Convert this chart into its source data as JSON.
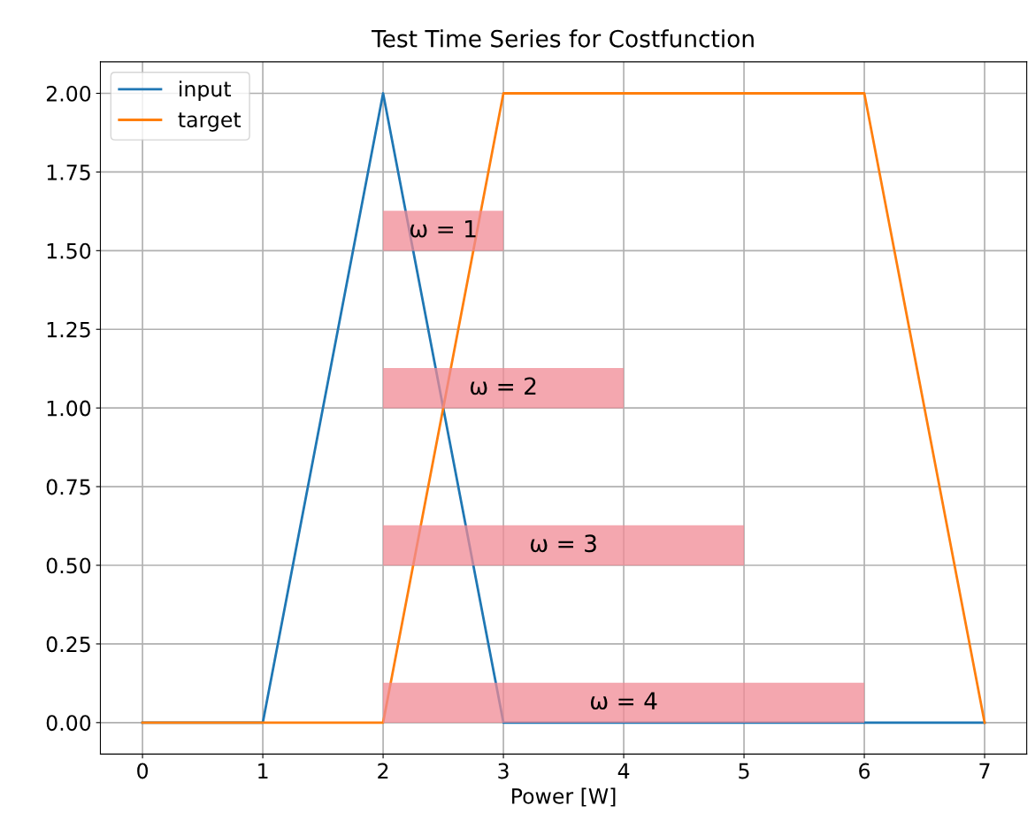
{
  "chart_data": {
    "type": "line",
    "title": "Test Time Series for Costfunction",
    "xlabel": "Power [W]",
    "x": [
      0,
      1,
      2,
      3,
      4,
      5,
      6,
      7
    ],
    "series": [
      {
        "name": "input",
        "color": "#1f77b4",
        "values": [
          0,
          0,
          2,
          0,
          0,
          0,
          0,
          0
        ]
      },
      {
        "name": "target",
        "color": "#ff7f0e",
        "values": [
          0,
          0,
          0,
          2,
          2,
          2,
          2,
          0
        ]
      }
    ],
    "xlim": [
      -0.35,
      7.35
    ],
    "ylim": [
      -0.1,
      2.1
    ],
    "xticks": [
      0,
      1,
      2,
      3,
      4,
      5,
      6,
      7
    ],
    "yticks": [
      {
        "value": 0,
        "label": "0.00"
      },
      {
        "value": 0.25,
        "label": "0.25"
      },
      {
        "value": 0.5,
        "label": "0.50"
      },
      {
        "value": 0.75,
        "label": "0.75"
      },
      {
        "value": 1,
        "label": "1.00"
      },
      {
        "value": 1.25,
        "label": "1.25"
      },
      {
        "value": 1.5,
        "label": "1.50"
      },
      {
        "value": 1.75,
        "label": "1.75"
      },
      {
        "value": 2,
        "label": "2.00"
      }
    ],
    "bands": [
      {
        "axis": "x",
        "from": 2,
        "to": 3,
        "label": "ω = 1",
        "color": "#f08a94"
      },
      {
        "axis": "x",
        "from": 2,
        "to": 4,
        "label": "ω = 2",
        "color": "#f08a94"
      },
      {
        "axis": "x",
        "from": 2,
        "to": 5,
        "label": "ω = 3",
        "color": "#f08a94"
      },
      {
        "axis": "x",
        "from": 2,
        "to": 6,
        "label": "ω = 4",
        "color": "#f08a94"
      }
    ],
    "grid": true,
    "legend": "top left",
    "marker": "none",
    "line_style": "solid"
  }
}
